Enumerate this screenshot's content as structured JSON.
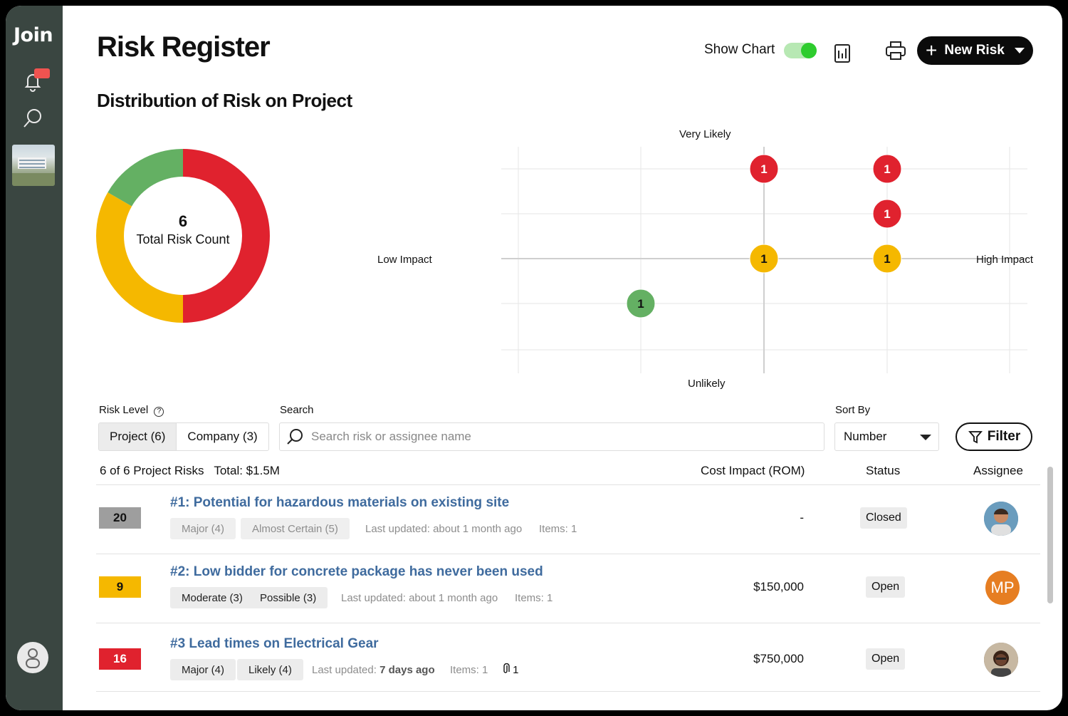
{
  "sidebar": {
    "logo": "Join",
    "icons": [
      "bell-icon",
      "search-icon",
      "project-thumbnail",
      "user-icon"
    ]
  },
  "header": {
    "title": "Risk Register",
    "show_chart_label": "Show Chart",
    "show_chart_on": true,
    "new_risk_label": "New Risk"
  },
  "chart_section": {
    "subtitle": "Distribution of Risk on Project"
  },
  "chart_data": [
    {
      "type": "pie",
      "center_value": "6",
      "center_label": "Total Risk Count",
      "slices": [
        {
          "value": 3,
          "color": "#e0222e"
        },
        {
          "value": 2,
          "color": "#f5b800"
        },
        {
          "value": 1,
          "color": "#64b063"
        }
      ]
    },
    {
      "type": "scatter",
      "x_label_left": "Low Impact",
      "x_label_right": "High Impact",
      "y_label_top": "Very Likely",
      "y_label_bottom": "Unlikely",
      "points": [
        {
          "x": 3,
          "y": 5,
          "count": "1",
          "color": "#e0222e"
        },
        {
          "x": 4,
          "y": 5,
          "count": "1",
          "color": "#e0222e"
        },
        {
          "x": 4,
          "y": 4,
          "count": "1",
          "color": "#e0222e"
        },
        {
          "x": 3,
          "y": 3,
          "count": "1",
          "color": "#f5b800"
        },
        {
          "x": 4,
          "y": 3,
          "count": "1",
          "color": "#f5b800"
        },
        {
          "x": 2,
          "y": 2,
          "count": "1",
          "color": "#64b063"
        }
      ]
    }
  ],
  "controls": {
    "risk_level_label": "Risk Level",
    "segments": [
      "Project (6)",
      "Company (3)"
    ],
    "search_label": "Search",
    "search_placeholder": "Search risk or assignee name",
    "sort_label": "Sort By",
    "sort_value": "Number",
    "filter_label": "Filter"
  },
  "list": {
    "count_text": "6 of 6 Project Risks",
    "total_text": "Total: $1.5M",
    "col_cost": "Cost Impact (ROM)",
    "col_status": "Status",
    "col_assignee": "Assignee",
    "rows": [
      {
        "score": "20",
        "score_color": "#9e9e9e",
        "title": "#1: Potential for hazardous materials on existing site",
        "impact": "Major (4)",
        "likelihood": "Almost Certain (5)",
        "updated": "Last updated: about 1 month ago",
        "items": "Items: 1",
        "cost": "-",
        "status": "Closed"
      },
      {
        "score": "9",
        "score_color": "#f5b800",
        "title": "#2: Low bidder for concrete package has never been used",
        "impact": "Moderate (3)",
        "likelihood": "Possible (3)",
        "updated": "Last updated: about 1 month ago",
        "items": "Items: 1",
        "cost": "$150,000",
        "status": "Open",
        "assignee_initials": "MP"
      },
      {
        "score": "16",
        "score_color": "#e0222e",
        "title": "#3 Lead times on Electrical Gear",
        "impact": "Major (4)",
        "likelihood": "Likely (4)",
        "updated_prefix": "Last updated:",
        "updated_bold": "7 days ago",
        "items": "Items: 1",
        "attachments": "1",
        "cost": "$750,000",
        "status": "Open"
      }
    ]
  }
}
